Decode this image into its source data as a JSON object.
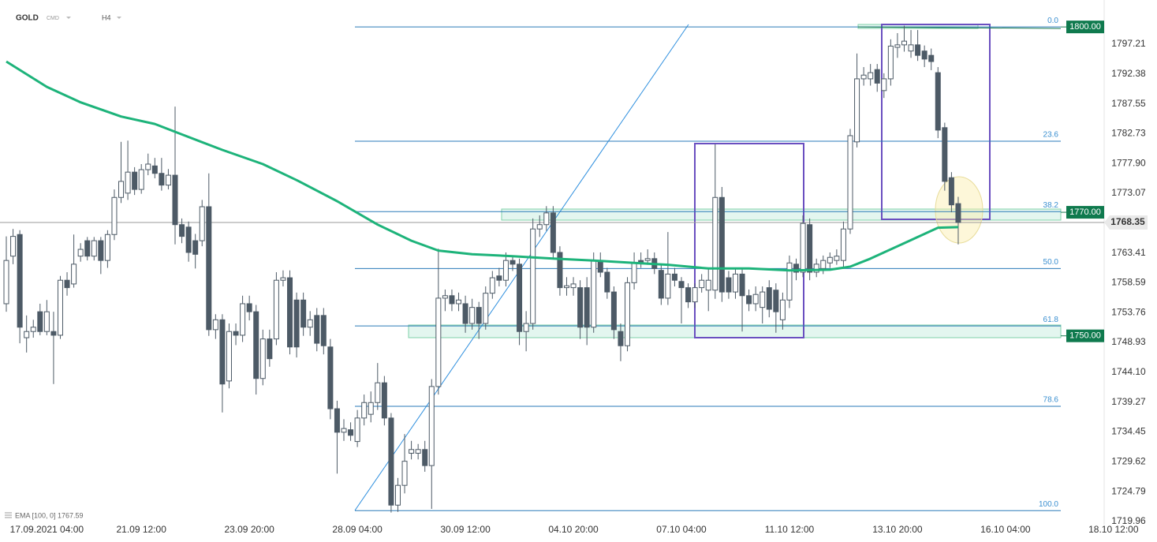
{
  "header": {
    "symbol": "GOLD",
    "market": "CMD",
    "interval": "H4"
  },
  "chart_data": {
    "type": "candlestick",
    "up_color": "#ffffff",
    "down_color": "#4d5a66",
    "wick_color": "#4d5a66",
    "categories": [
      null,
      null,
      null,
      null,
      null,
      null,
      "17.09.2021 04:00",
      null,
      null,
      null,
      null,
      null,
      null,
      null,
      null,
      null,
      null,
      null,
      null,
      null,
      "21.09 12:00",
      null,
      null,
      null,
      null,
      null,
      null,
      null,
      null,
      null,
      null,
      null,
      null,
      null,
      null,
      null,
      "23.09 20:00",
      null,
      null,
      null,
      null,
      null,
      null,
      null,
      null,
      null,
      null,
      null,
      null,
      null,
      null,
      null,
      "28.09 04:00",
      null,
      null,
      null,
      null,
      null,
      null,
      null,
      null,
      null,
      null,
      null,
      null,
      null,
      null,
      null,
      "30.09 12:00",
      null,
      null,
      null,
      null,
      null,
      null,
      null,
      null,
      null,
      null,
      null,
      null,
      null,
      null,
      null,
      "04.10 20:00",
      null,
      null,
      null,
      null,
      null,
      null,
      null,
      null,
      null,
      null,
      null,
      null,
      null,
      null,
      null,
      "07.10 04:00",
      null,
      null,
      null,
      null,
      null,
      null,
      null,
      null,
      null,
      null,
      null,
      null,
      null,
      null,
      null,
      "11.10 12:00",
      null,
      null,
      null,
      null,
      null,
      null,
      null,
      null,
      null,
      null,
      null,
      null,
      null,
      null,
      null,
      "13.10 20:00",
      null,
      null,
      null,
      null,
      null,
      null,
      null,
      null,
      null,
      null,
      null,
      null,
      null,
      null,
      null,
      "16.10 04:00",
      null,
      null,
      null,
      null,
      null,
      null,
      null,
      null,
      null,
      null,
      null,
      null,
      null,
      null,
      null,
      "18.10 12:00",
      null,
      null
    ],
    "open": [
      1755.2,
      1762.9,
      1766.4,
      1749.7,
      1750.7,
      1753.9,
      1750.7,
      1750.7,
      1750.1,
      1759.0,
      1758.4,
      1762.9,
      1765.4,
      1762.9,
      1765.4,
      1762.2,
      1766.4,
      1772.4,
      1773.1,
      1776.5,
      1773.7,
      1776.9,
      1777.5,
      1776.3,
      1774.4,
      1776.0,
      1768.0,
      1767.6,
      1765.4,
      1765.4,
      1770.9,
      1751.0,
      1752.6,
      1742.7,
      1750.7,
      1750.1,
      1755.2,
      1753.9,
      1743.1,
      1749.5,
      1749.5,
      1759.0,
      1759.4,
      1755.8,
      1755.8,
      1751.4,
      1753.3,
      1753.3,
      1748.2,
      1738.2,
      1734.4,
      1734.8,
      1732.9,
      1736.7,
      1737.3,
      1739.2,
      1742.4,
      1736.7,
      1722.6,
      1725.8,
      1731.0,
      1731.0,
      1731.6,
      1729.0,
      1741.8,
      1756.1,
      1756.5,
      1755.2,
      1755.2,
      1752.0,
      1754.6,
      1752.0,
      1756.9,
      1759.7,
      1759.0,
      1762.2,
      1761.6,
      1750.7,
      1752.0,
      1767.3,
      1768.0,
      1769.9,
      1763.5,
      1757.8,
      1757.8,
      1757.8,
      1757.8,
      1751.4,
      1762.2,
      1760.3,
      1757.1,
      1750.7,
      1748.4,
      1758.6,
      1762.2,
      1762.2,
      1762.5,
      1760.6,
      1756.1,
      1760.0,
      1758.8,
      1757.8,
      1755.5,
      1757.8,
      1757.4,
      1757.4,
      1772.4,
      1759.4,
      1757.1,
      1760.0,
      1756.5,
      1755.2,
      1754.6,
      1757.8,
      1757.4,
      1752.6,
      1755.8,
      1761.6,
      1760.3,
      1768.0,
      1760.3,
      1760.9,
      1761.8,
      1762.2,
      1762.2,
      1767.3,
      1781.4,
      1791.6,
      1791.6,
      1793.1,
      1789.7,
      1791.6,
      1796.7,
      1797.1,
      1796.1,
      1797.1,
      1796.1,
      1795.4,
      1792.6,
      1783.7,
      1775.6,
      1771.4,
      null,
      null,
      null,
      null,
      null,
      null,
      null,
      null,
      null,
      null,
      null,
      null,
      null,
      null,
      null,
      null,
      null,
      null,
      null,
      null,
      null,
      null,
      null,
      null,
      null
    ],
    "high": [
      1766.1,
      1767.3,
      1767.1,
      1753.3,
      1752.6,
      1755.2,
      1755.8,
      1753.9,
      1759.7,
      1760.3,
      1766.4,
      1765.0,
      1766.0,
      1766.0,
      1766.0,
      1767.1,
      1773.7,
      1781.4,
      1781.6,
      1777.3,
      1777.8,
      1779.5,
      1778.8,
      1778.8,
      1777.0,
      1787.1,
      1769.0,
      1768.5,
      1766.5,
      1772.0,
      1776.3,
      1753.5,
      1753.5,
      1752.0,
      1752.0,
      1756.5,
      1756.5,
      1755.0,
      1751.0,
      1751.0,
      1760.3,
      1760.6,
      1760.6,
      1757.0,
      1757.0,
      1754.0,
      1754.5,
      1754.5,
      1749.5,
      1739.5,
      1736.5,
      1736.0,
      1738.0,
      1740.5,
      1741.0,
      1745.6,
      1743.5,
      1737.5,
      1727.0,
      1734.1,
      1733.0,
      1732.5,
      1733.0,
      1743.0,
      1764.1,
      1757.5,
      1757.5,
      1757.0,
      1756.5,
      1756.0,
      1755.5,
      1758.0,
      1760.5,
      1761.0,
      1763.5,
      1763.0,
      1762.5,
      1754.0,
      1769.0,
      1769.5,
      1771.0,
      1771.0,
      1764.5,
      1759.5,
      1759.5,
      1759.0,
      1759.5,
      1763.5,
      1763.5,
      1761.0,
      1758.0,
      1752.0,
      1759.5,
      1763.5,
      1763.5,
      1764.0,
      1763.5,
      1761.5,
      1766.8,
      1761.0,
      1759.5,
      1758.5,
      1758.5,
      1760.0,
      1761.0,
      1781.0,
      1774.1,
      1760.5,
      1761.0,
      1761.0,
      1757.5,
      1758.0,
      1758.0,
      1759.0,
      1758.5,
      1757.0,
      1763.0,
      1762.5,
      1769.5,
      1769.0,
      1762.5,
      1763.0,
      1763.5,
      1764.0,
      1768.5,
      1783.5,
      1795.7,
      1793.5,
      1794.0,
      1794.0,
      1792.5,
      1798.0,
      1799.0,
      1800.2,
      1799.5,
      1799.5,
      1797.0,
      1796.5,
      1793.5,
      1784.5,
      1776.5,
      1772.5,
      null,
      null,
      null,
      null,
      null,
      null,
      null,
      null,
      null,
      null,
      null,
      null,
      null,
      null,
      null,
      null,
      null,
      null,
      null,
      null,
      null,
      null,
      null,
      null,
      null
    ],
    "low": [
      1753.9,
      1761.6,
      1748.8,
      1747.3,
      1749.7,
      1750.1,
      1750.1,
      1742.2,
      1749.5,
      1756.5,
      1757.8,
      1762.0,
      1762.2,
      1762.2,
      1760.0,
      1761.0,
      1765.5,
      1771.5,
      1772.0,
      1772.8,
      1773.0,
      1776.0,
      1775.5,
      1773.5,
      1773.7,
      1764.8,
      1765.0,
      1762.0,
      1760.9,
      1764.5,
      1750.0,
      1749.5,
      1737.6,
      1741.5,
      1748.5,
      1749.0,
      1752.5,
      1740.5,
      1742.0,
      1745.0,
      1748.5,
      1758.0,
      1747.0,
      1746.5,
      1750.0,
      1750.0,
      1747.5,
      1747.0,
      1736.5,
      1727.7,
      1733.0,
      1733.0,
      1732.0,
      1735.5,
      1736.0,
      1738.0,
      1735.5,
      1721.4,
      1721.5,
      1724.5,
      1730.0,
      1730.0,
      1728.0,
      1722.0,
      1740.5,
      1754.0,
      1754.0,
      1754.0,
      1750.5,
      1751.0,
      1749.5,
      1751.0,
      1756.0,
      1758.0,
      1758.0,
      1760.5,
      1748.5,
      1747.5,
      1751.0,
      1766.0,
      1767.0,
      1762.5,
      1756.5,
      1756.5,
      1756.5,
      1749.5,
      1748.5,
      1750.5,
      1759.5,
      1756.0,
      1749.5,
      1745.9,
      1747.5,
      1757.5,
      1761.0,
      1761.5,
      1760.0,
      1755.0,
      1755.0,
      1758.0,
      1752.0,
      1754.5,
      1754.5,
      1757.0,
      1754.0,
      1756.0,
      1755.5,
      1756.0,
      1756.0,
      1750.7,
      1754.0,
      1754.0,
      1752.0,
      1753.0,
      1750.5,
      1751.0,
      1754.5,
      1759.0,
      1759.5,
      1759.0,
      1759.5,
      1760.0,
      1761.0,
      1761.5,
      1761.0,
      1766.5,
      1780.5,
      1790.5,
      1790.5,
      1789.5,
      1788.5,
      1790.5,
      1795.0,
      1796.0,
      1795.0,
      1794.5,
      1793.5,
      1793.0,
      1782.0,
      1773.5,
      1770.0,
      1764.8,
      null,
      null,
      null,
      null,
      null,
      null,
      null,
      null,
      null,
      null,
      null,
      null,
      null,
      null,
      null,
      null,
      null,
      null,
      null,
      null,
      null,
      null,
      null,
      null,
      null
    ],
    "close": [
      1762.2,
      1766.1,
      1751.4,
      1750.7,
      1751.4,
      1750.7,
      1753.9,
      1750.1,
      1759.0,
      1757.8,
      1761.6,
      1764.0,
      1762.9,
      1765.4,
      1762.2,
      1766.4,
      1772.4,
      1775.0,
      1776.5,
      1773.7,
      1776.9,
      1777.8,
      1776.3,
      1774.4,
      1776.0,
      1768.0,
      1766.1,
      1763.5,
      1763.2,
      1770.9,
      1751.0,
      1752.6,
      1742.2,
      1750.7,
      1750.1,
      1755.2,
      1753.9,
      1743.1,
      1749.5,
      1746.3,
      1759.0,
      1759.4,
      1748.2,
      1748.2,
      1751.4,
      1752.6,
      1748.8,
      1748.4,
      1738.2,
      1734.4,
      1735.0,
      1733.9,
      1736.7,
      1739.2,
      1739.2,
      1742.4,
      1736.7,
      1722.6,
      1725.8,
      1729.7,
      1731.6,
      1731.6,
      1729.0,
      1741.8,
      1756.1,
      1756.5,
      1755.2,
      1755.8,
      1752.0,
      1754.6,
      1752.0,
      1756.9,
      1759.4,
      1759.0,
      1762.2,
      1761.6,
      1750.7,
      1752.0,
      1767.3,
      1768.0,
      1769.9,
      1763.5,
      1757.8,
      1758.1,
      1758.4,
      1751.4,
      1751.4,
      1762.2,
      1760.3,
      1757.1,
      1751.0,
      1748.4,
      1758.6,
      1761.8,
      1761.8,
      1762.5,
      1760.9,
      1756.1,
      1760.0,
      1759.0,
      1757.8,
      1755.5,
      1757.8,
      1759.0,
      1759.0,
      1772.4,
      1757.1,
      1757.1,
      1760.0,
      1756.5,
      1755.2,
      1756.7,
      1757.1,
      1754.3,
      1753.9,
      1755.8,
      1761.8,
      1760.3,
      1768.2,
      1760.3,
      1761.6,
      1762.2,
      1762.7,
      1762.9,
      1767.3,
      1782.4,
      1791.6,
      1792.2,
      1792.6,
      1790.9,
      1791.6,
      1796.9,
      1797.1,
      1797.7,
      1797.1,
      1795.4,
      1794.8,
      1794.4,
      1783.3,
      1775.0,
      1771.2,
      1768.35,
      null,
      null,
      null,
      null,
      null,
      null,
      null,
      null,
      null,
      null,
      null,
      null,
      null,
      null,
      null,
      null,
      null,
      null,
      null,
      null,
      null,
      null,
      null,
      null,
      null
    ],
    "ema": {
      "label": "EMA [100, 0] 1767.59",
      "color": "#1db37a",
      "x": [
        0,
        6,
        11,
        17,
        22,
        26,
        32,
        38,
        43,
        49,
        55,
        60,
        64,
        69,
        75,
        81,
        87,
        93,
        98,
        104,
        110,
        116,
        122,
        125,
        128,
        133,
        138,
        141
      ],
      "values": [
        1794.4,
        1790.3,
        1787.8,
        1785.5,
        1784.3,
        1782.6,
        1780.1,
        1777.8,
        1775.2,
        1771.8,
        1768.0,
        1765.4,
        1763.8,
        1763.2,
        1762.9,
        1762.5,
        1762.2,
        1761.8,
        1761.5,
        1760.9,
        1760.9,
        1760.6,
        1760.7,
        1761.2,
        1762.5,
        1765.0,
        1767.5,
        1767.59
      ]
    },
    "fib_levels": [
      {
        "value": 1800,
        "label": "0.0"
      },
      {
        "value": 1781.5,
        "label": "23.6"
      },
      {
        "value": 1770.1,
        "label": "38.2"
      },
      {
        "value": 1760.9,
        "label": "50.0"
      },
      {
        "value": 1751.6,
        "label": "61.8"
      },
      {
        "value": 1738.6,
        "label": "78.6"
      },
      {
        "value": 1721.7,
        "label": "100.0"
      }
    ],
    "price_levels": [
      {
        "value": 1800,
        "label": "1800.00"
      },
      {
        "value": 1770,
        "label": "1770.00"
      },
      {
        "value": 1750,
        "label": "1750.00"
      }
    ],
    "last_price": {
      "value": 1768.35,
      "label": "1768.35"
    },
    "ylim": [
      1719.44,
      1804.36
    ],
    "yticks": [
      {
        "value": 1797.21,
        "label": "1797.21"
      },
      {
        "value": 1792.38,
        "label": "1792.38"
      },
      {
        "value": 1787.55,
        "label": "1787.55"
      },
      {
        "value": 1782.73,
        "label": "1782.73"
      },
      {
        "value": 1777.9,
        "label": "1777.90"
      },
      {
        "value": 1773.07,
        "label": "1773.07"
      },
      {
        "value": 1763.41,
        "label": "1763.41"
      },
      {
        "value": 1758.59,
        "label": "1758.59"
      },
      {
        "value": 1753.76,
        "label": "1753.76"
      },
      {
        "value": 1748.93,
        "label": "1748.93"
      },
      {
        "value": 1744.1,
        "label": "1744.10"
      },
      {
        "value": 1739.27,
        "label": "1739.27"
      },
      {
        "value": 1734.45,
        "label": "1734.45"
      },
      {
        "value": 1729.62,
        "label": "1729.62"
      },
      {
        "value": 1724.79,
        "label": "1724.79"
      },
      {
        "value": 1719.96,
        "label": "1719.96"
      }
    ]
  }
}
